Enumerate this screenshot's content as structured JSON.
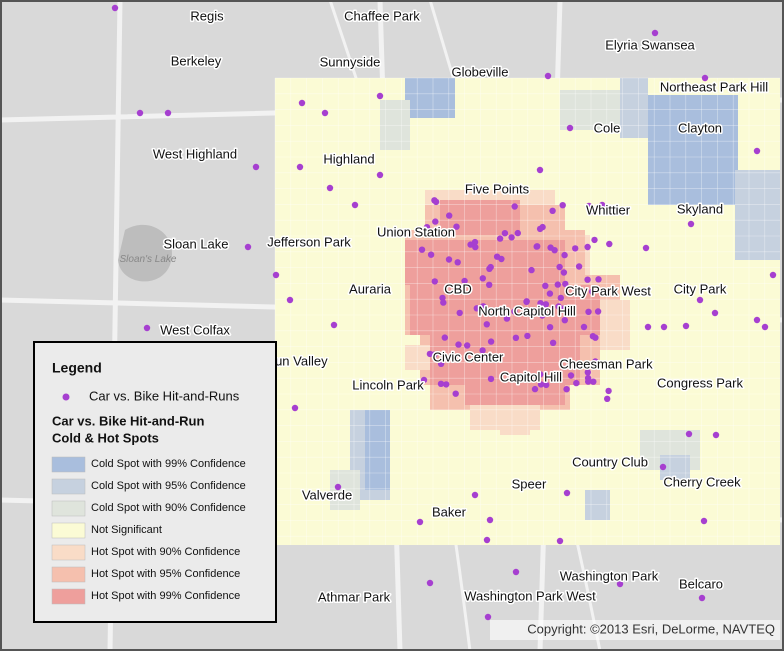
{
  "map": {
    "places": [
      "Regis",
      "Chaffee Park",
      "Elyria Swansea",
      "Berkeley",
      "Sunnyside",
      "Globeville",
      "Northeast Park Hill",
      "Cole",
      "Clayton",
      "West Highland",
      "Highland",
      "Five Points",
      "Whittier",
      "Skyland",
      "Union Station",
      "Sloan Lake",
      "Jefferson Park",
      "Auraria",
      "CBD",
      "City Park West",
      "City Park",
      "North Capitol Hill",
      "West Colfax",
      "Sun Valley",
      "Civic Center",
      "Cheesman Park",
      "Lincoln Park",
      "Capitol Hill",
      "Congress Park",
      "Country Club",
      "Cherry Creek",
      "Speer",
      "Valverde",
      "Baker",
      "Washington Park",
      "Belcaro",
      "Athmar Park",
      "Washington Park West"
    ],
    "lake_label": "Sloan's Lake",
    "legend": {
      "title": "Legend",
      "point_label": "Car vs. Bike Hit-and-Runs",
      "section_title": [
        "Car vs. Bike Hit-and-Run",
        "Cold & Hot Spots"
      ],
      "classes": [
        {
          "label": "Cold Spot with 99% Confidence",
          "color": "#a9bedd"
        },
        {
          "label": "Cold Spot with 95% Confidence",
          "color": "#c6d1df"
        },
        {
          "label": "Cold Spot with 90% Confidence",
          "color": "#dfe4dc"
        },
        {
          "label": "Not Significant",
          "color": "#fbfbd5"
        },
        {
          "label": "Hot Spot with 90% Confidence",
          "color": "#f9dcc7"
        },
        {
          "label": "Hot Spot with 95% Confidence",
          "color": "#f5c0ae"
        },
        {
          "label": "Hot Spot with 99% Confidence",
          "color": "#ee9f9c"
        }
      ]
    },
    "copyright": "Copyright: ©2013 Esri, DeLorme, NAVTEQ"
  }
}
